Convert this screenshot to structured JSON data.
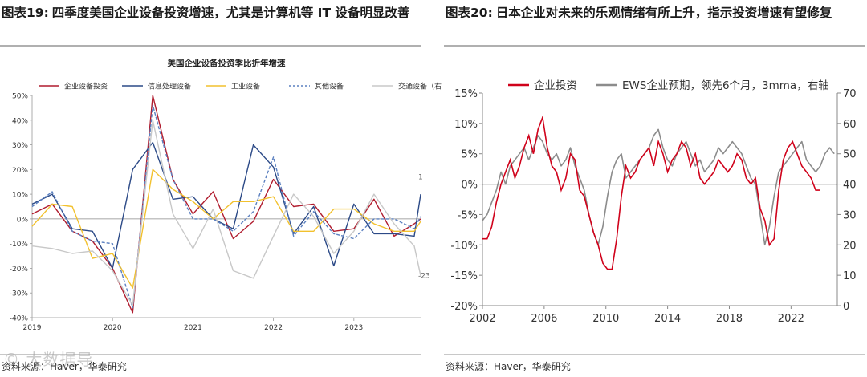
{
  "left_panel": {
    "fig_number": "图表19:",
    "fig_title": "四季度美国企业设备投资增速，尤其是计算机等 IT 设备明显改善",
    "source": "资料来源：Haver，华泰研究",
    "watermark": "© 大数据导"
  },
  "right_panel": {
    "fig_number": "图表20:",
    "fig_title": "日本企业对未来的乐观情绪有所上升，指示投资增速有望修复",
    "source": "资料来源：Haver，华泰研究"
  },
  "chart_data": [
    {
      "type": "line",
      "title": "美国企业设备投资季比折年增速",
      "x_ticks": [
        "2019",
        "2020",
        "2021",
        "2022",
        "2023"
      ],
      "x_tick_positions": [
        2019.0,
        2020.0,
        2021.0,
        2022.0,
        2023.0
      ],
      "xlim": [
        2019.0,
        2023.83
      ],
      "ylim": [
        -40,
        50
      ],
      "y_ticks": [
        -40,
        -30,
        -20,
        -10,
        0,
        10,
        20,
        30,
        40,
        50
      ],
      "y_unit": "%",
      "legend_position": "top",
      "annotations": [
        {
          "text": "1",
          "x": 2023.83,
          "y": 17
        },
        {
          "text": "-23",
          "x": 2023.83,
          "y": -23
        }
      ],
      "x": [
        2019.0,
        2019.25,
        2019.5,
        2019.75,
        2020.0,
        2020.25,
        2020.5,
        2020.75,
        2021.0,
        2021.25,
        2021.5,
        2021.75,
        2022.0,
        2022.25,
        2022.5,
        2022.75,
        2023.0,
        2023.25,
        2023.5,
        2023.75,
        2023.83
      ],
      "series": [
        {
          "name": "企业设备投资",
          "color": "#b01c2e",
          "dash": "solid",
          "values": [
            2,
            6,
            -5,
            -9,
            -20,
            -38,
            50,
            16,
            2,
            11,
            -8,
            -1,
            16,
            5,
            6,
            -5,
            -4,
            8,
            -7,
            -2,
            0
          ]
        },
        {
          "name": "信息处理设备",
          "color": "#2c4a87",
          "dash": "solid",
          "values": [
            6,
            10,
            -4,
            -5,
            -20,
            20,
            31,
            8,
            9,
            0,
            -4,
            30,
            21,
            -6,
            5,
            -19,
            6,
            -6,
            -6,
            -7,
            10
          ]
        },
        {
          "name": "工业设备",
          "color": "#f2c12e",
          "dash": "solid",
          "values": [
            -3,
            6,
            5,
            -16,
            -14,
            -28,
            20,
            12,
            7,
            0,
            7,
            7,
            9,
            -5,
            -5,
            4,
            4,
            -2,
            -5,
            -5,
            -1
          ]
        },
        {
          "name": "其他设备",
          "color": "#5b80c0",
          "dash": "dashed",
          "values": [
            5,
            11,
            -5,
            -9,
            -10,
            -36,
            46,
            16,
            0,
            0,
            -5,
            3,
            25,
            -7,
            3,
            -6,
            -8,
            0,
            0,
            -4,
            1
          ]
        },
        {
          "name": "交通设备（右",
          "color": "#c8c8c8",
          "dash": "solid",
          "values": [
            -11,
            -12,
            -14,
            -13,
            -21,
            -35,
            40,
            2,
            -12,
            4,
            -21,
            -24,
            -7,
            10,
            1,
            -14,
            -5,
            10,
            -2,
            -11,
            -23
          ]
        }
      ]
    },
    {
      "type": "line",
      "title": "",
      "legend_position": "top",
      "x_ticks": [
        "2002",
        "2006",
        "2010",
        "2014",
        "2018",
        "2022"
      ],
      "x_tick_positions": [
        2002,
        2006,
        2010,
        2014,
        2018,
        2022
      ],
      "xlim": [
        2002,
        2025
      ],
      "y_left": {
        "ticks": [
          -20,
          -15,
          -10,
          -5,
          0,
          5,
          10,
          15
        ],
        "unit": "%",
        "lim": [
          -20,
          15
        ]
      },
      "y_right": {
        "ticks": [
          0,
          10,
          20,
          30,
          40,
          50,
          60,
          70
        ],
        "lim": [
          0,
          70
        ]
      },
      "series": [
        {
          "name": "企业投资",
          "color": "#d0021b",
          "axis": "left",
          "x": [
            2002.0,
            2002.3,
            2002.6,
            2002.9,
            2003.2,
            2003.5,
            2003.8,
            2004.1,
            2004.4,
            2004.7,
            2005.0,
            2005.3,
            2005.6,
            2005.9,
            2006.2,
            2006.5,
            2006.8,
            2007.1,
            2007.4,
            2007.7,
            2008.0,
            2008.3,
            2008.6,
            2008.9,
            2009.2,
            2009.5,
            2009.8,
            2010.1,
            2010.4,
            2010.7,
            2011.0,
            2011.3,
            2011.6,
            2011.9,
            2012.2,
            2012.5,
            2012.8,
            2013.1,
            2013.4,
            2013.7,
            2014.0,
            2014.3,
            2014.6,
            2014.9,
            2015.2,
            2015.5,
            2015.8,
            2016.1,
            2016.4,
            2016.7,
            2017.0,
            2017.3,
            2017.6,
            2017.9,
            2018.2,
            2018.5,
            2018.8,
            2019.1,
            2019.4,
            2019.7,
            2020.0,
            2020.3,
            2020.6,
            2020.9,
            2021.2,
            2021.5,
            2021.8,
            2022.1,
            2022.4,
            2022.7,
            2023.0,
            2023.3,
            2023.6,
            2023.9
          ],
          "values": [
            -9,
            -9,
            -7,
            -3,
            0,
            2,
            4,
            1,
            3,
            6,
            8,
            5,
            9,
            11,
            6,
            3,
            2,
            -1,
            1,
            5,
            4,
            -1,
            -2,
            -5,
            -8,
            -10,
            -13,
            -14,
            -14,
            -9,
            -2,
            3,
            1,
            2,
            4,
            5,
            6,
            3,
            7,
            5,
            2,
            4,
            5,
            7,
            6,
            3,
            5,
            1,
            0,
            1,
            2,
            4,
            3,
            2,
            3,
            5,
            4,
            1,
            0,
            1,
            -4,
            -6,
            -10,
            -9,
            -1,
            4,
            6,
            7,
            5,
            3,
            2,
            1,
            -1,
            -1
          ]
        },
        {
          "name": "EWS企业预期，领先6个月，3mma，右轴",
          "color": "#8c8c8c",
          "axis": "right",
          "x": [
            2002.0,
            2002.3,
            2002.6,
            2002.9,
            2003.2,
            2003.5,
            2003.8,
            2004.1,
            2004.4,
            2004.7,
            2005.0,
            2005.3,
            2005.6,
            2005.9,
            2006.2,
            2006.5,
            2006.8,
            2007.1,
            2007.4,
            2007.7,
            2008.0,
            2008.3,
            2008.6,
            2008.9,
            2009.2,
            2009.5,
            2009.8,
            2010.1,
            2010.4,
            2010.7,
            2011.0,
            2011.3,
            2011.6,
            2011.9,
            2012.2,
            2012.5,
            2012.8,
            2013.1,
            2013.4,
            2013.7,
            2014.0,
            2014.3,
            2014.6,
            2014.9,
            2015.2,
            2015.5,
            2015.8,
            2016.1,
            2016.4,
            2016.7,
            2017.0,
            2017.3,
            2017.6,
            2017.9,
            2018.2,
            2018.5,
            2018.8,
            2019.1,
            2019.4,
            2019.7,
            2020.0,
            2020.3,
            2020.6,
            2020.9,
            2021.2,
            2021.5,
            2021.8,
            2022.1,
            2022.4,
            2022.7,
            2023.0,
            2023.3,
            2023.6,
            2023.9,
            2024.2,
            2024.5,
            2024.8
          ],
          "values": [
            28,
            30,
            34,
            38,
            44,
            40,
            46,
            48,
            50,
            52,
            48,
            52,
            56,
            54,
            50,
            48,
            50,
            46,
            48,
            52,
            46,
            42,
            38,
            30,
            24,
            20,
            26,
            36,
            44,
            48,
            50,
            42,
            44,
            46,
            48,
            50,
            52,
            56,
            58,
            52,
            48,
            46,
            50,
            52,
            54,
            50,
            46,
            48,
            44,
            46,
            48,
            52,
            50,
            52,
            54,
            52,
            50,
            46,
            42,
            40,
            30,
            20,
            26,
            36,
            44,
            46,
            48,
            50,
            52,
            54,
            48,
            46,
            44,
            46,
            50,
            52,
            50
          ]
        }
      ]
    }
  ]
}
